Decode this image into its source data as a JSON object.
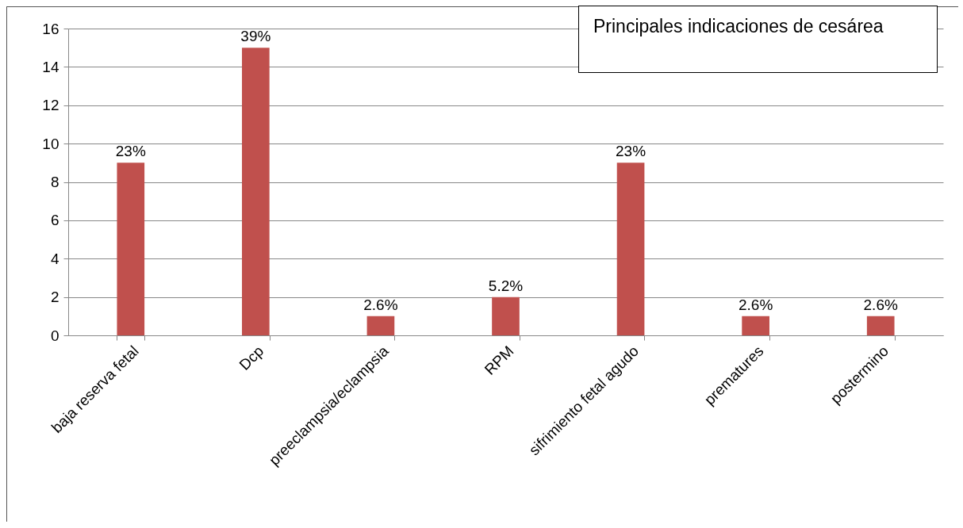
{
  "chart_data": {
    "type": "bar",
    "title": "Principales indicaciones  de cesárea",
    "categories": [
      "baja reserva fetal",
      "Dcp",
      "preeclampsia/eclampsia",
      "RPM",
      "sifrimiento fetal agudo",
      "prematures",
      "postermino"
    ],
    "values": [
      9,
      15,
      1,
      2,
      9,
      1,
      1
    ],
    "annotations": [
      {
        "text": "23%",
        "x": "baja reserva fetal",
        "y": 9
      },
      {
        "text": "39%",
        "x": "Dcp",
        "y": 15
      },
      {
        "text": "2.6%",
        "x": "preeclampsia/eclampsia",
        "y": 1
      },
      {
        "text": "5.2%",
        "x": "RPM",
        "y": 2
      },
      {
        "text": "23%",
        "x": "sifrimiento fetal agudo",
        "y": 9
      },
      {
        "text": "2.6%",
        "x": "prematures",
        "y": 1
      },
      {
        "text": "2.6%",
        "x": "postermino",
        "y": 1
      }
    ],
    "color": "#c0504d",
    "ylim": [
      0,
      16
    ],
    "yticks": [
      0,
      2,
      4,
      6,
      8,
      10,
      12,
      14,
      16
    ],
    "grid": true
  }
}
